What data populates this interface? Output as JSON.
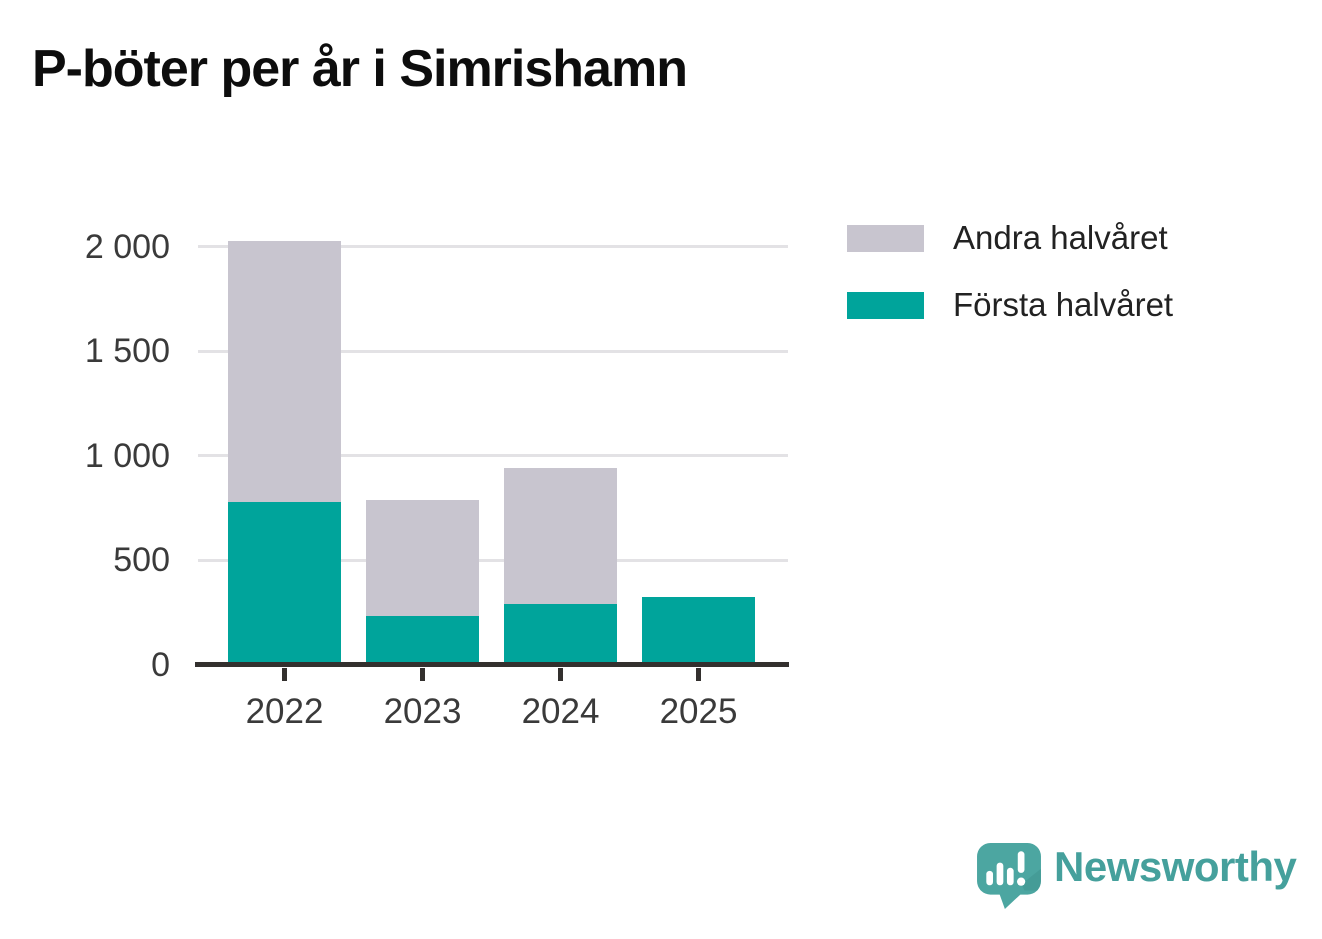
{
  "title": "P-böter per år i Simrishamn",
  "legend": {
    "items": [
      {
        "label": "Andra halvåret",
        "color": "#C8C5CF"
      },
      {
        "label": "Första halvåret",
        "color": "#00A49B"
      }
    ]
  },
  "chart_data": {
    "type": "bar",
    "stacked": true,
    "title": "P-böter per år i Simrishamn",
    "categories": [
      "2022",
      "2023",
      "2024",
      "2025"
    ],
    "series": [
      {
        "name": "Första halvåret",
        "color": "#00A49B",
        "values": [
          780,
          235,
          290,
          325
        ]
      },
      {
        "name": "Andra halvåret",
        "color": "#C8C5CF",
        "values": [
          1250,
          555,
          650,
          0
        ]
      }
    ],
    "xlabel": "",
    "ylabel": "",
    "ylim": [
      0,
      2200
    ],
    "yticks": [
      0,
      500,
      1000,
      1500,
      2000
    ],
    "ytick_labels": [
      "0",
      "500",
      "1 000",
      "1 500",
      "2 000"
    ],
    "grid": true,
    "gridline_color": "#E3E2E5",
    "axis_color": "#33302E",
    "legend_position": "top-right"
  },
  "branding": {
    "logo_text": "Newsworthy",
    "logo_color": "#45A09C",
    "logo_mark_color": "#4CA6A1",
    "logo_mark_shade_color": "#3D918C"
  }
}
